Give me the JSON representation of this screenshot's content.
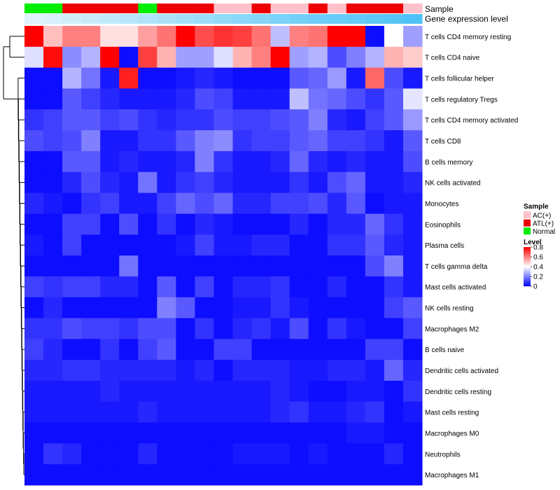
{
  "chart_data": {
    "type": "heatmap",
    "title": "",
    "annotation_rows": [
      {
        "label": "Sample"
      },
      {
        "label": "Gene expression level"
      }
    ],
    "samples": [
      "Normal",
      "Normal",
      "ATL(+)",
      "ATL(+)",
      "ATL(+)",
      "ATL(+)",
      "Normal",
      "ATL(+)",
      "ATL(+)",
      "ATL(+)",
      "AC(+)",
      "AC(+)",
      "ATL(+)",
      "AC(+)",
      "AC(+)",
      "ATL(+)",
      "AC(+)",
      "ATL(+)",
      "ATL(+)",
      "ATL(+)",
      "AC(+)"
    ],
    "expression_level": [
      0.05,
      0.1,
      0.15,
      0.2,
      0.25,
      0.3,
      0.35,
      0.4,
      0.45,
      0.5,
      0.55,
      0.6,
      0.65,
      0.7,
      0.75,
      0.8,
      0.83,
      0.86,
      0.9,
      0.95,
      1.0
    ],
    "rows": [
      "T cells CD4 memory resting",
      "T cells CD4 naive",
      "T cells follicular helper",
      "T cells regulatory  Tregs",
      "T cells CD4 memory activated",
      "T cells CD8",
      "B cells memory",
      "NK cells activated",
      "Monocytes",
      "Eosinophils",
      "Plasma cells",
      "T cells gamma delta",
      "Mast cells activated",
      "NK cells resting",
      "Macrophages M2",
      "B cells naive",
      "Dendritic cells activated",
      "Dendritic cells resting",
      "Mast cells resting",
      "Macrophages M0",
      "Neutrophils",
      "Macrophages M1"
    ],
    "values": [
      [
        0.8,
        0.5,
        0.6,
        0.6,
        0.45,
        0.45,
        0.55,
        0.62,
        0.8,
        0.68,
        0.72,
        0.7,
        0.62,
        0.3,
        0.6,
        0.62,
        0.8,
        0.8,
        0.02,
        0.4,
        0.25
      ],
      [
        0.35,
        0.78,
        0.22,
        0.28,
        0.8,
        0.02,
        0.7,
        0.52,
        0.25,
        0.25,
        0.35,
        0.52,
        0.6,
        0.8,
        0.25,
        0.28,
        0.12,
        0.2,
        0.28,
        0.52,
        0.48
      ],
      [
        0.02,
        0.02,
        0.28,
        0.18,
        0.04,
        0.75,
        0.02,
        0.02,
        0.04,
        0.06,
        0.04,
        0.02,
        0.02,
        0.02,
        0.14,
        0.16,
        0.24,
        0.04,
        0.64,
        0.12,
        0.04
      ],
      [
        0.02,
        0.02,
        0.14,
        0.1,
        0.06,
        0.04,
        0.04,
        0.04,
        0.06,
        0.12,
        0.1,
        0.04,
        0.04,
        0.04,
        0.3,
        0.18,
        0.16,
        0.12,
        0.08,
        0.14,
        0.36
      ],
      [
        0.08,
        0.1,
        0.14,
        0.14,
        0.1,
        0.12,
        0.08,
        0.06,
        0.08,
        0.08,
        0.12,
        0.1,
        0.1,
        0.12,
        0.14,
        0.2,
        0.06,
        0.04,
        0.1,
        0.14,
        0.24
      ],
      [
        0.12,
        0.1,
        0.12,
        0.2,
        0.04,
        0.04,
        0.08,
        0.08,
        0.14,
        0.2,
        0.22,
        0.08,
        0.1,
        0.1,
        0.14,
        0.16,
        0.1,
        0.1,
        0.08,
        0.04,
        0.14
      ],
      [
        0.02,
        0.02,
        0.14,
        0.14,
        0.04,
        0.06,
        0.04,
        0.04,
        0.06,
        0.2,
        0.08,
        0.04,
        0.04,
        0.06,
        0.16,
        0.06,
        0.04,
        0.06,
        0.04,
        0.04,
        0.12
      ],
      [
        0.02,
        0.02,
        0.06,
        0.12,
        0.06,
        0.04,
        0.18,
        0.04,
        0.08,
        0.1,
        0.06,
        0.04,
        0.04,
        0.04,
        0.08,
        0.04,
        0.12,
        0.16,
        0.04,
        0.04,
        0.06
      ],
      [
        0.06,
        0.04,
        0.02,
        0.08,
        0.1,
        0.04,
        0.04,
        0.1,
        0.16,
        0.12,
        0.16,
        0.06,
        0.06,
        0.1,
        0.1,
        0.12,
        0.06,
        0.14,
        0.02,
        0.04,
        0.04
      ],
      [
        0.02,
        0.02,
        0.1,
        0.1,
        0.02,
        0.12,
        0.02,
        0.08,
        0.02,
        0.06,
        0.04,
        0.02,
        0.02,
        0.02,
        0.06,
        0.02,
        0.06,
        0.06,
        0.16,
        0.08,
        0.04
      ],
      [
        0.04,
        0.02,
        0.1,
        0.02,
        0.02,
        0.02,
        0.02,
        0.02,
        0.04,
        0.1,
        0.04,
        0.04,
        0.06,
        0.06,
        0.02,
        0.02,
        0.08,
        0.08,
        0.14,
        0.06,
        0.04
      ],
      [
        0.02,
        0.02,
        0.02,
        0.02,
        0.02,
        0.18,
        0.02,
        0.02,
        0.02,
        0.02,
        0.02,
        0.02,
        0.02,
        0.02,
        0.02,
        0.02,
        0.02,
        0.02,
        0.12,
        0.2,
        0.04
      ],
      [
        0.1,
        0.08,
        0.1,
        0.1,
        0.06,
        0.06,
        0.02,
        0.14,
        0.02,
        0.1,
        0.02,
        0.06,
        0.06,
        0.08,
        0.02,
        0.02,
        0.06,
        0.02,
        0.02,
        0.08,
        0.04
      ],
      [
        0.02,
        0.06,
        0.02,
        0.02,
        0.02,
        0.02,
        0.02,
        0.2,
        0.14,
        0.02,
        0.02,
        0.04,
        0.04,
        0.08,
        0.04,
        0.02,
        0.02,
        0.02,
        0.02,
        0.1,
        0.14
      ],
      [
        0.08,
        0.08,
        0.12,
        0.1,
        0.1,
        0.08,
        0.12,
        0.12,
        0.02,
        0.08,
        0.02,
        0.06,
        0.08,
        0.04,
        0.12,
        0.02,
        0.08,
        0.04,
        0.02,
        0.02,
        0.1
      ],
      [
        0.1,
        0.06,
        0.02,
        0.02,
        0.08,
        0.02,
        0.1,
        0.14,
        0.02,
        0.02,
        0.1,
        0.1,
        0.02,
        0.02,
        0.02,
        0.02,
        0.02,
        0.02,
        0.1,
        0.1,
        0.02
      ],
      [
        0.06,
        0.06,
        0.08,
        0.08,
        0.06,
        0.06,
        0.06,
        0.06,
        0.04,
        0.06,
        0.02,
        0.06,
        0.06,
        0.06,
        0.04,
        0.04,
        0.06,
        0.06,
        0.04,
        0.16,
        0.06
      ],
      [
        0.04,
        0.04,
        0.04,
        0.04,
        0.06,
        0.04,
        0.04,
        0.04,
        0.04,
        0.04,
        0.04,
        0.04,
        0.04,
        0.06,
        0.04,
        0.02,
        0.02,
        0.04,
        0.04,
        0.02,
        0.08
      ],
      [
        0.04,
        0.04,
        0.04,
        0.04,
        0.04,
        0.04,
        0.06,
        0.04,
        0.04,
        0.04,
        0.04,
        0.04,
        0.04,
        0.06,
        0.08,
        0.04,
        0.04,
        0.06,
        0.08,
        0.02,
        0.04
      ],
      [
        0.02,
        0.02,
        0.02,
        0.02,
        0.02,
        0.02,
        0.02,
        0.02,
        0.02,
        0.02,
        0.02,
        0.02,
        0.02,
        0.02,
        0.02,
        0.02,
        0.02,
        0.04,
        0.04,
        0.02,
        0.02
      ],
      [
        0.02,
        0.08,
        0.06,
        0.02,
        0.02,
        0.02,
        0.06,
        0.02,
        0.02,
        0.02,
        0.02,
        0.04,
        0.04,
        0.04,
        0.02,
        0.04,
        0.02,
        0.02,
        0.02,
        0.06,
        0.02
      ],
      [
        0.02,
        0.02,
        0.02,
        0.02,
        0.02,
        0.02,
        0.02,
        0.02,
        0.02,
        0.02,
        0.02,
        0.02,
        0.02,
        0.02,
        0.02,
        0.02,
        0.02,
        0.02,
        0.02,
        0.02,
        0.02
      ]
    ],
    "legend": {
      "sample_title": "Sample",
      "sample_entries": [
        {
          "label": "AC(+)",
          "color": "#ffc0cb"
        },
        {
          "label": "ATL(+)",
          "color": "#ee0000"
        },
        {
          "label": "Normal",
          "color": "#00ee00"
        }
      ],
      "level_title": "Level",
      "level_ticks": [
        "0.8",
        "0.6",
        "0.4",
        "0.2",
        "0"
      ],
      "level_tick_values": [
        0.8,
        0.6,
        0.4,
        0.2,
        0
      ],
      "level_range": [
        0,
        0.8
      ]
    },
    "colors": {
      "low": "#0000ff",
      "mid": "#ffffff",
      "high": "#ff0000",
      "expression_low": "#e6f5fb",
      "expression_high": "#4fc3f7"
    }
  }
}
